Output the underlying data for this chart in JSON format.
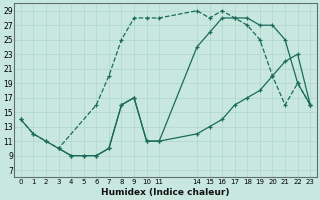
{
  "xlabel": "Humidex (Indice chaleur)",
  "bg_color": "#c8e8df",
  "grid_color": "#b0d4cc",
  "line_color": "#1a6b5a",
  "xlim": [
    -0.5,
    23.5
  ],
  "ylim": [
    6,
    30
  ],
  "xticks": [
    0,
    1,
    2,
    3,
    4,
    5,
    6,
    7,
    8,
    9,
    10,
    11,
    14,
    15,
    16,
    17,
    18,
    19,
    20,
    21,
    22,
    23
  ],
  "yticks": [
    7,
    9,
    11,
    13,
    15,
    17,
    19,
    21,
    23,
    25,
    27,
    29
  ],
  "line1_x": [
    0,
    1,
    2,
    3,
    6,
    7,
    8,
    9,
    10,
    11,
    14,
    15,
    16,
    17,
    18,
    19,
    20,
    21,
    22,
    23
  ],
  "line1_y": [
    14,
    12,
    11,
    10,
    16,
    20,
    25,
    28,
    28,
    28,
    29,
    28,
    29,
    28,
    27,
    25,
    20,
    16,
    19,
    16
  ],
  "line2_x": [
    0,
    1,
    2,
    3,
    4,
    5,
    6,
    7,
    8,
    9,
    10,
    11,
    14,
    15,
    16,
    17,
    18,
    19,
    20,
    21,
    22,
    23
  ],
  "line2_y": [
    14,
    12,
    11,
    10,
    9,
    9,
    9,
    10,
    16,
    17,
    11,
    11,
    12,
    13,
    14,
    16,
    17,
    18,
    20,
    22,
    23,
    16
  ],
  "line3_x": [
    3,
    4,
    5,
    6,
    7,
    8,
    9,
    10,
    11,
    14,
    15,
    16,
    17,
    18,
    19,
    20,
    21,
    22,
    23
  ],
  "line3_y": [
    10,
    9,
    9,
    9,
    10,
    16,
    17,
    11,
    11,
    24,
    26,
    28,
    28,
    28,
    27,
    27,
    25,
    19,
    16
  ]
}
